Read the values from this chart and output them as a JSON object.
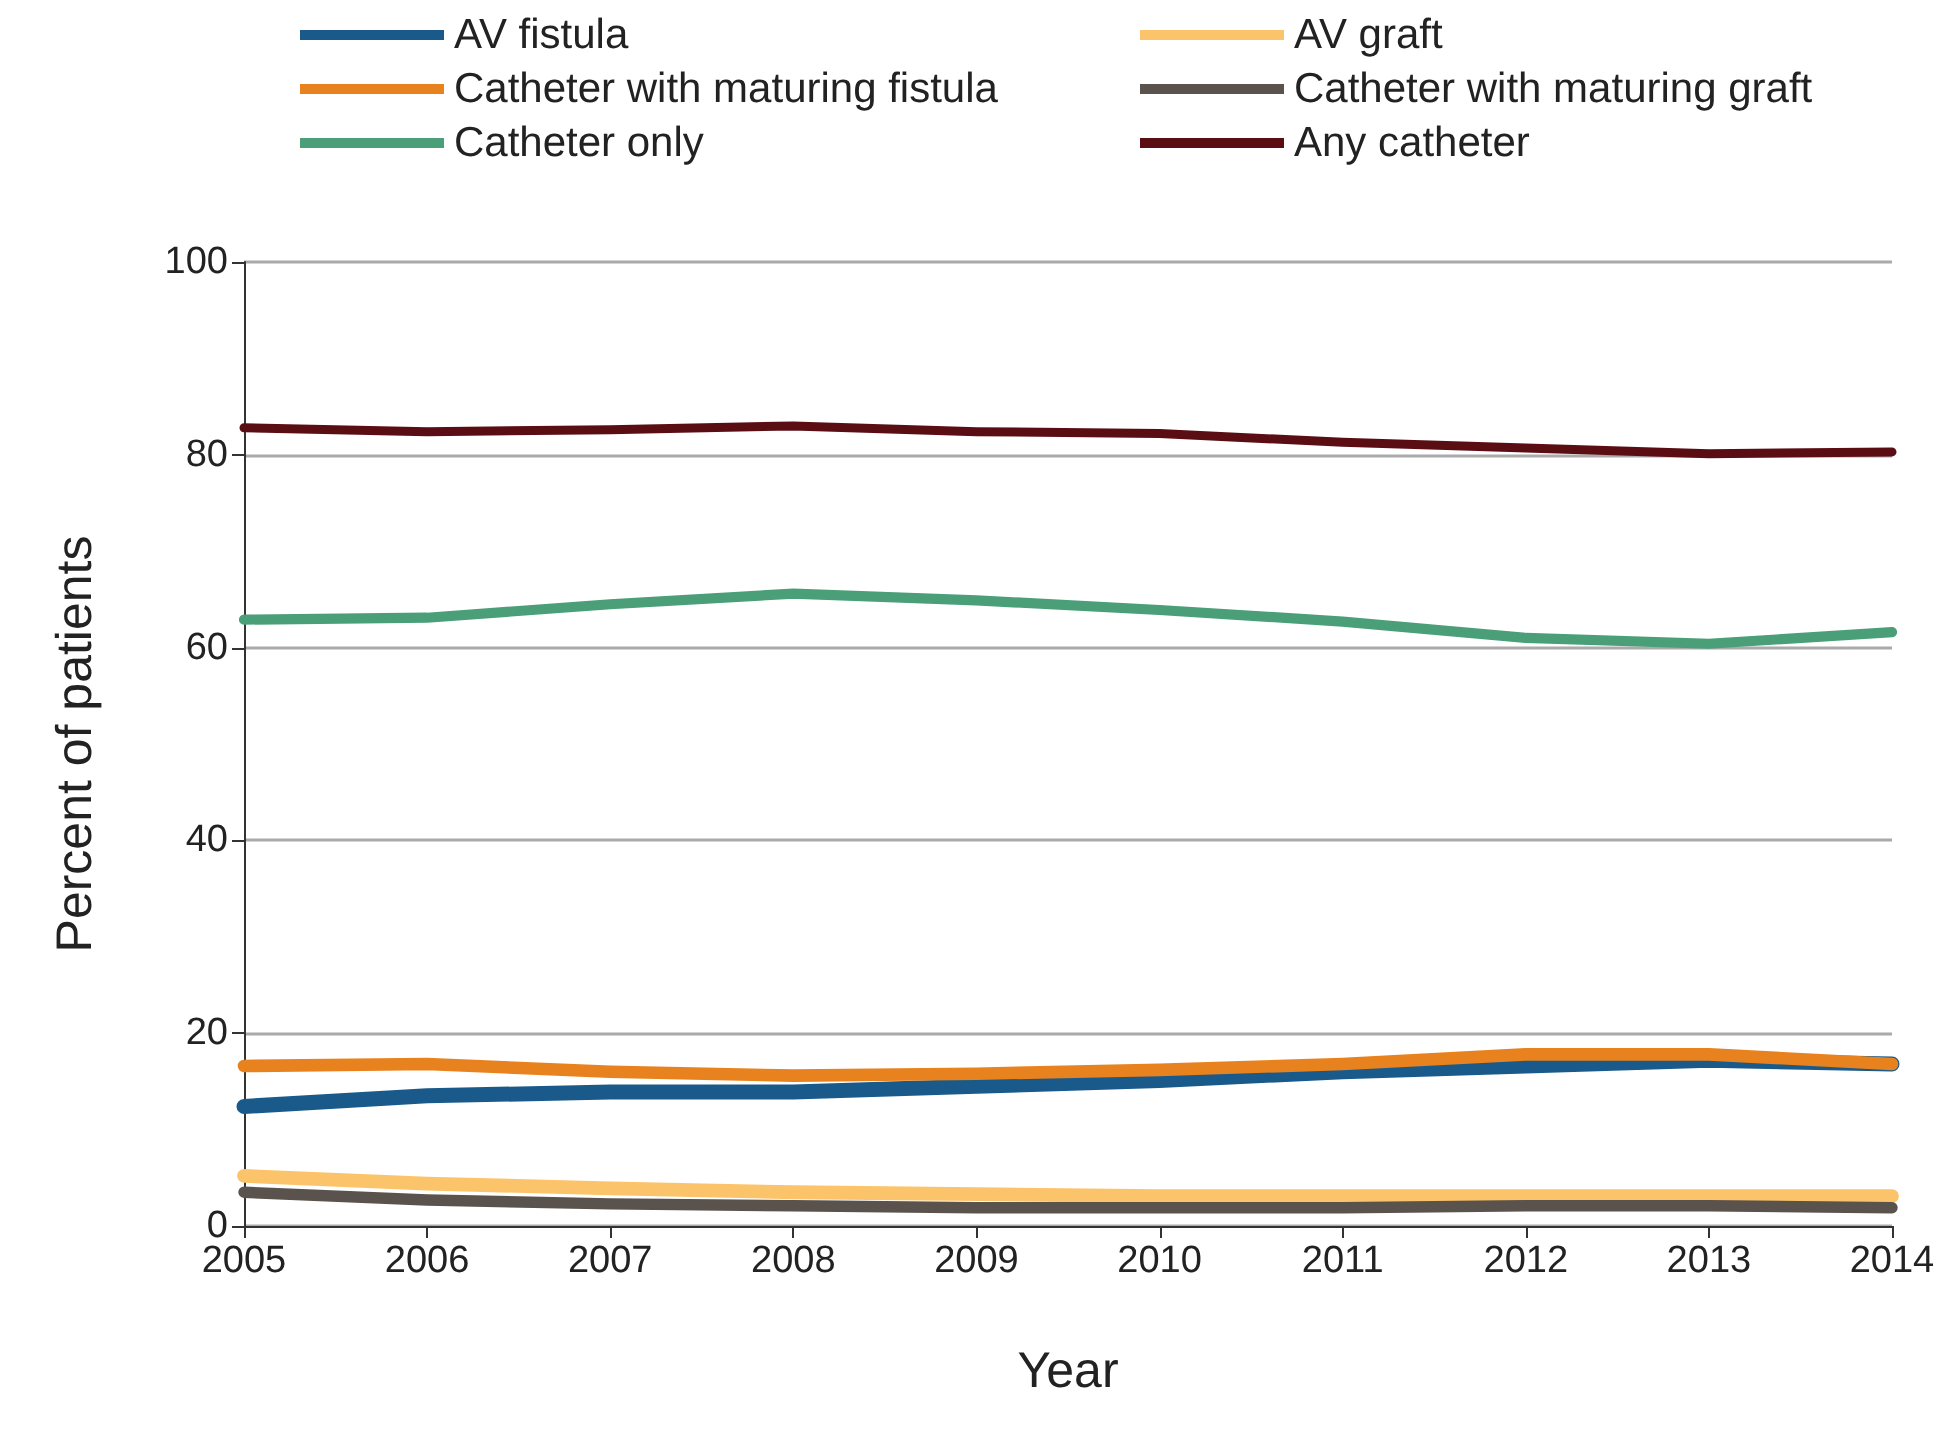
{
  "chart_data": {
    "type": "line",
    "xlabel": "Year",
    "ylabel": "Percent of patients",
    "x": [
      2005,
      2006,
      2007,
      2008,
      2009,
      2010,
      2011,
      2012,
      2013,
      2014
    ],
    "xlim": [
      2005,
      2014
    ],
    "xticks": [
      2005,
      2006,
      2007,
      2008,
      2009,
      2010,
      2011,
      2012,
      2013,
      2014
    ],
    "ylim": [
      0,
      100
    ],
    "yticks": [
      0,
      20,
      40,
      60,
      80,
      100
    ],
    "grid": "y",
    "legend": "top",
    "marker": "none",
    "line_style": "solid",
    "series": [
      {
        "name": "AV fistula",
        "color": "#1a5a8a",
        "values": [
          12.4,
          13.5,
          13.9,
          13.9,
          14.5,
          15.1,
          16.0,
          16.6,
          17.2,
          16.8
        ]
      },
      {
        "name": "AV graft",
        "color": "#fcc46a",
        "values": [
          5.2,
          4.4,
          3.9,
          3.5,
          3.3,
          3.1,
          3.1,
          3.1,
          3.1,
          3.1
        ]
      },
      {
        "name": "Catheter with maturing fistula",
        "color": "#e8821e",
        "values": [
          16.6,
          16.8,
          16.0,
          15.6,
          15.8,
          16.2,
          16.8,
          17.8,
          17.8,
          16.8
        ]
      },
      {
        "name": "Catheter with maturing graft",
        "color": "#5a524d",
        "values": [
          3.5,
          2.7,
          2.3,
          2.1,
          1.9,
          1.9,
          1.9,
          2.1,
          2.1,
          1.9
        ]
      },
      {
        "name": "Catheter only",
        "color": "#4a9e78",
        "values": [
          62.9,
          63.1,
          64.5,
          65.6,
          64.9,
          63.9,
          62.7,
          61.0,
          60.4,
          61.6
        ]
      },
      {
        "name": "Any catheter",
        "color": "#5a0e14",
        "values": [
          82.8,
          82.4,
          82.6,
          83.0,
          82.4,
          82.2,
          81.3,
          80.7,
          80.1,
          80.3
        ]
      }
    ]
  }
}
